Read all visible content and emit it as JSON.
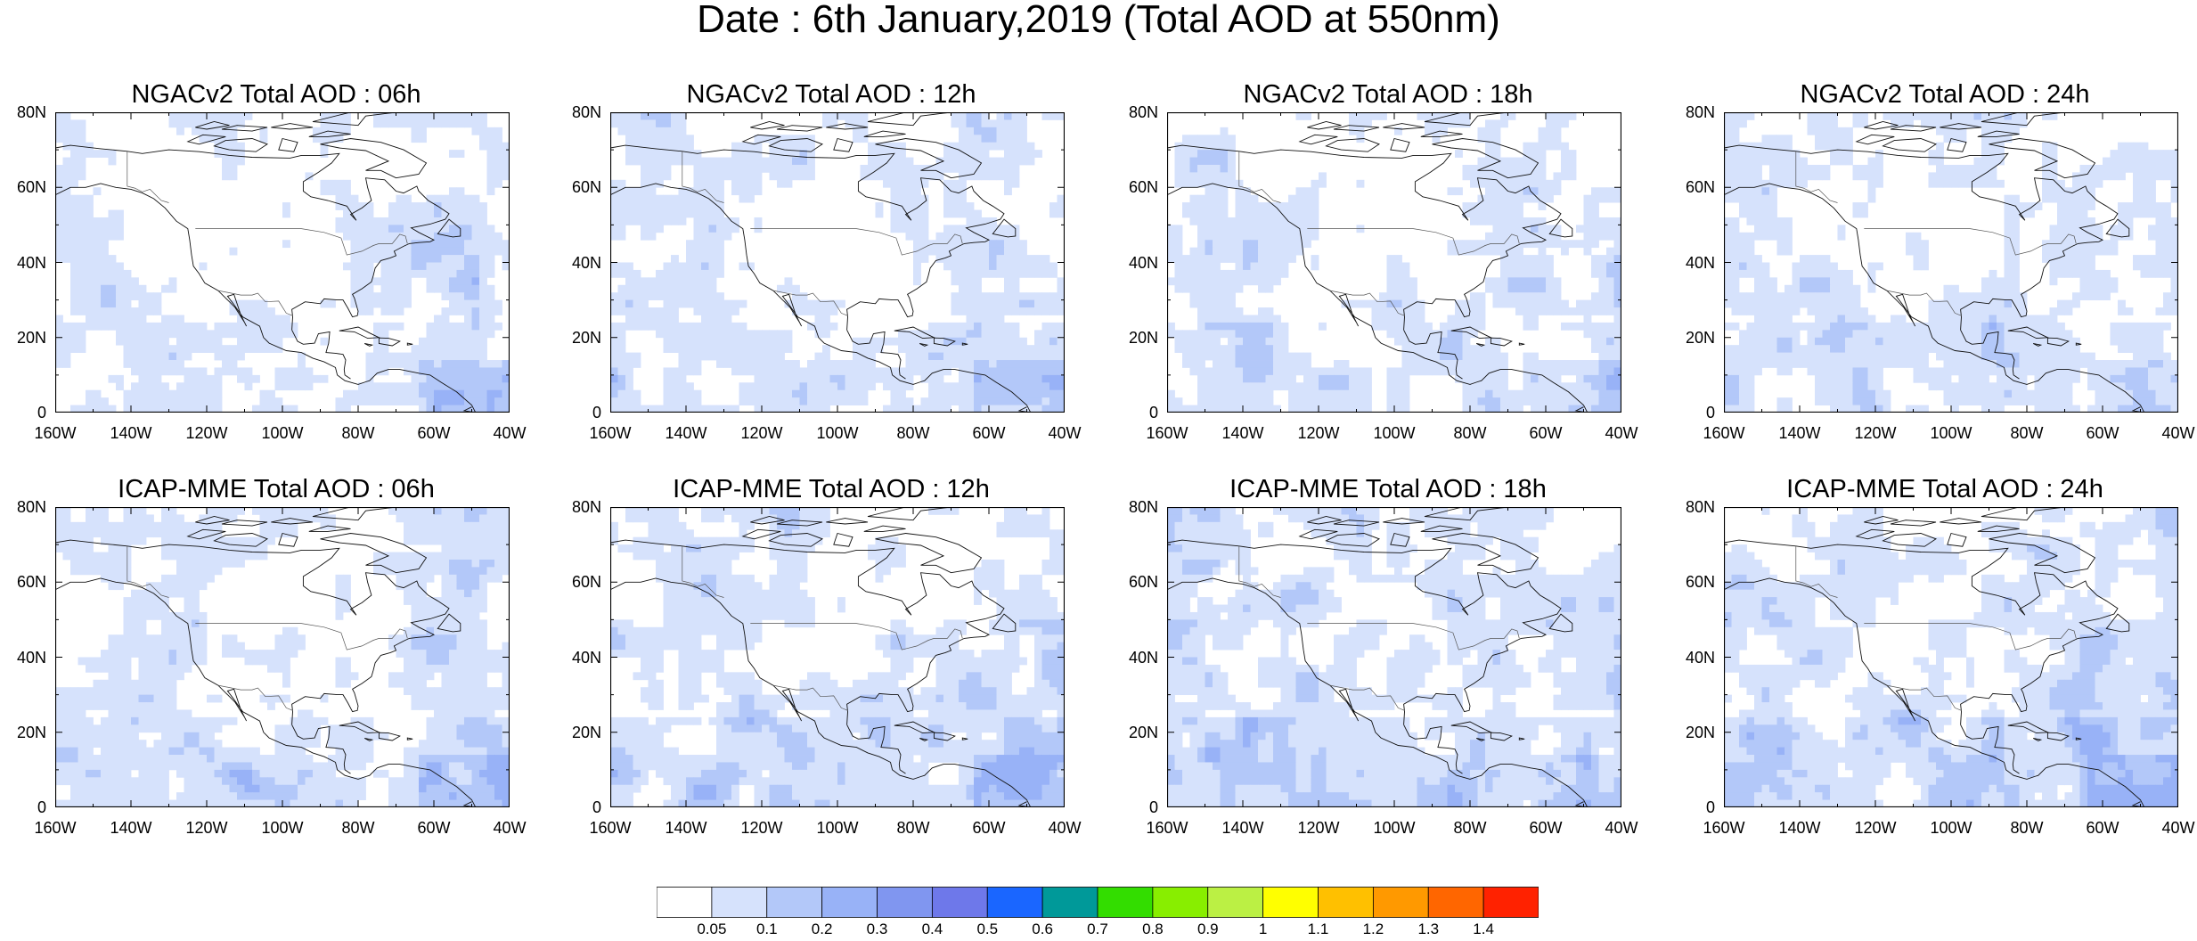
{
  "title": "Date : 6th January,2019 (Total AOD at 550nm)",
  "y_ticks": [
    "80N",
    "60N",
    "40N",
    "20N",
    "0"
  ],
  "x_ticks": [
    "160W",
    "140W",
    "120W",
    "100W",
    "80W",
    "60W",
    "40W"
  ],
  "panels": [
    {
      "title": "NGACv2 Total AOD : 06h",
      "model": "NGACv2",
      "lead": "06h",
      "intensity": 0.12
    },
    {
      "title": "NGACv2 Total AOD : 12h",
      "model": "NGACv2",
      "lead": "12h",
      "intensity": 0.14
    },
    {
      "title": "NGACv2 Total AOD : 18h",
      "model": "NGACv2",
      "lead": "18h",
      "intensity": 0.16
    },
    {
      "title": "NGACv2 Total AOD : 24h",
      "model": "NGACv2",
      "lead": "24h",
      "intensity": 0.15
    },
    {
      "title": "ICAP-MME Total AOD : 06h",
      "model": "ICAP-MME",
      "lead": "06h",
      "intensity": 0.22
    },
    {
      "title": "ICAP-MME Total AOD : 12h",
      "model": "ICAP-MME",
      "lead": "12h",
      "intensity": 0.26
    },
    {
      "title": "ICAP-MME Total AOD : 18h",
      "model": "ICAP-MME",
      "lead": "18h",
      "intensity": 0.28
    },
    {
      "title": "ICAP-MME Total AOD : 24h",
      "model": "ICAP-MME",
      "lead": "24h",
      "intensity": 0.3
    }
  ],
  "colorbar": {
    "labels": [
      "0.05",
      "0.1",
      "0.2",
      "0.3",
      "0.4",
      "0.5",
      "0.6",
      "0.7",
      "0.8",
      "0.9",
      "1",
      "1.1",
      "1.2",
      "1.3",
      "1.4"
    ],
    "colors": [
      "#ffffff",
      "#d6e2fc",
      "#b3c8f9",
      "#98b2f7",
      "#8096f0",
      "#6e78ea",
      "#1a66ff",
      "#009999",
      "#33dd00",
      "#88ee00",
      "#bbf044",
      "#ffff00",
      "#ffc000",
      "#ff9900",
      "#ff6600",
      "#ff2200"
    ]
  }
}
